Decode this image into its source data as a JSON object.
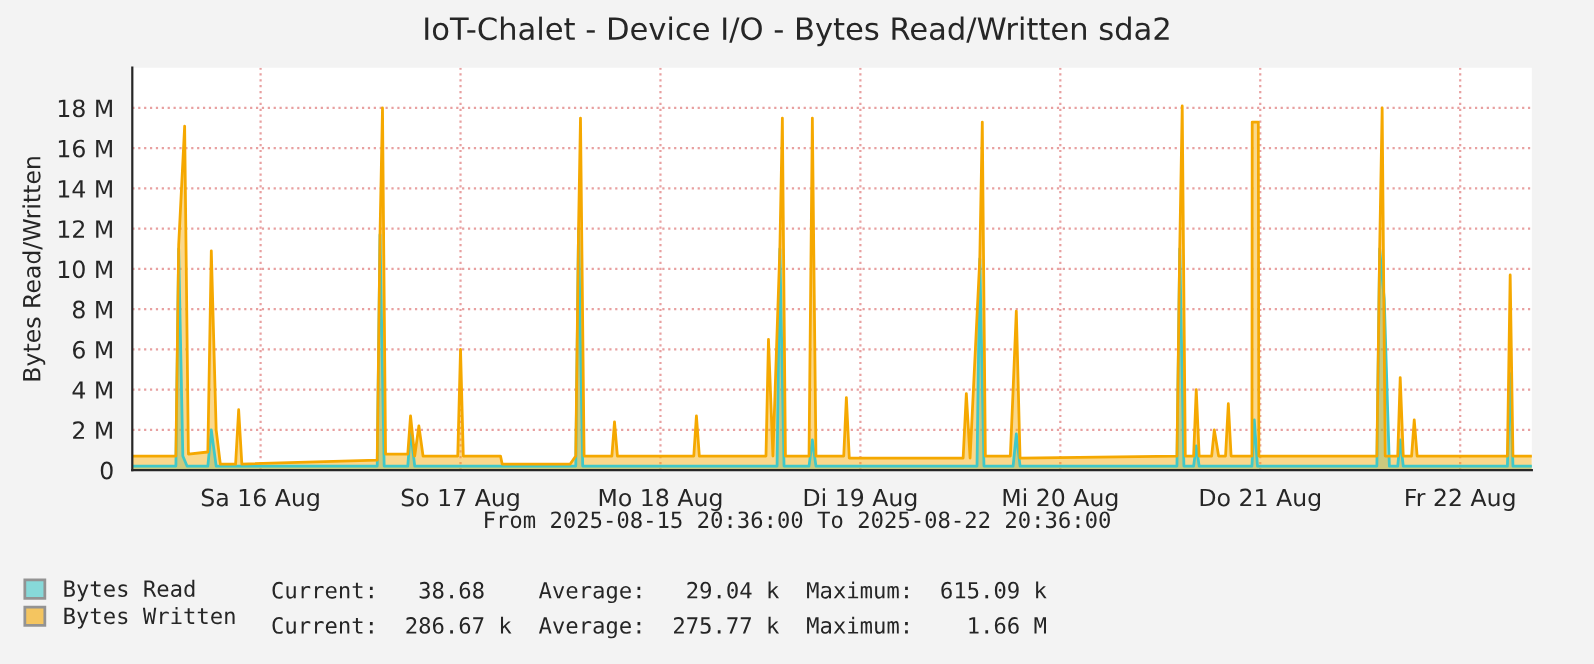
{
  "chart_data": {
    "type": "area",
    "title": "IoT-Chalet - Device I/O - Bytes Read/Written sda2",
    "ylabel": "Bytes Read/Written",
    "xlim": [
      "2025-08-15T20:36",
      "2025-08-22T20:36"
    ],
    "xticks": [
      {
        "value": "2025-08-16T12:00",
        "label": "Sa 16 Aug"
      },
      {
        "value": "2025-08-17T12:00",
        "label": "So 17 Aug"
      },
      {
        "value": "2025-08-18T12:00",
        "label": "Mo 18 Aug"
      },
      {
        "value": "2025-08-19T12:00",
        "label": "Di 19 Aug"
      },
      {
        "value": "2025-08-20T12:00",
        "label": "Mi 20 Aug"
      },
      {
        "value": "2025-08-21T12:00",
        "label": "Do 21 Aug"
      },
      {
        "value": "2025-08-22T12:00",
        "label": "Fr 22 Aug"
      }
    ],
    "ylim": [
      0,
      20000000
    ],
    "yticks": [
      0,
      {
        "value": 2000000,
        "label": "2 M"
      },
      {
        "value": 4000000,
        "label": "4 M"
      },
      {
        "value": 6000000,
        "label": "6 M"
      },
      {
        "value": 8000000,
        "label": "8 M"
      },
      {
        "value": 10000000,
        "label": "10 M"
      },
      {
        "value": 12000000,
        "label": "12 M"
      },
      {
        "value": 14000000,
        "label": "14 M"
      },
      {
        "value": 16000000,
        "label": "16 M"
      },
      {
        "value": 18000000,
        "label": "18 M"
      }
    ],
    "grid": true,
    "legend": "bottom left",
    "annotations": [
      "From 2025-08-15 20:36:00 To 2025-08-22 20:36:00",
      "Current:   38.68    Average:   29.04 k  Maximum:  615.09 k",
      "Current:  286.67 k  Average:  275.77 k  Maximum:    1.66 M"
    ],
    "series": [
      {
        "name": "Bytes Read",
        "color": "#40c8c8",
        "x": [
          "2025-08-15T20:36",
          "2025-08-16T01:50",
          "2025-08-16T02:10",
          "2025-08-16T02:40",
          "2025-08-16T03:10",
          "2025-08-16T05:40",
          "2025-08-16T06:05",
          "2025-08-16T06:40",
          "2025-08-17T02:00",
          "2025-08-17T02:20",
          "2025-08-17T02:50",
          "2025-08-17T05:40",
          "2025-08-17T06:00",
          "2025-08-17T06:30",
          "2025-08-18T01:50",
          "2025-08-18T02:10",
          "2025-08-18T02:40",
          "2025-08-19T02:00",
          "2025-08-19T02:20",
          "2025-08-19T02:50",
          "2025-08-19T05:50",
          "2025-08-19T06:14",
          "2025-08-19T06:40",
          "2025-08-20T02:00",
          "2025-08-20T02:20",
          "2025-08-20T02:50",
          "2025-08-20T06:20",
          "2025-08-20T06:43",
          "2025-08-20T07:10",
          "2025-08-21T02:00",
          "2025-08-21T02:20",
          "2025-08-21T02:50",
          "2025-08-21T04:00",
          "2025-08-21T04:19",
          "2025-08-21T04:40",
          "2025-08-21T11:00",
          "2025-08-21T11:17",
          "2025-08-21T11:40",
          "2025-08-22T02:00",
          "2025-08-22T02:20",
          "2025-08-22T02:53",
          "2025-08-22T03:30",
          "2025-08-22T04:30",
          "2025-08-22T04:48",
          "2025-08-22T05:10",
          "2025-08-22T17:40",
          "2025-08-22T18:00",
          "2025-08-22T18:20",
          "2025-08-22T20:36"
        ],
        "values": [
          200000,
          200000,
          11000000,
          700000,
          200000,
          200000,
          2000000,
          200000,
          200000,
          11700000,
          200000,
          200000,
          2000000,
          200000,
          200000,
          12000000,
          200000,
          200000,
          11000000,
          200000,
          200000,
          1500000,
          200000,
          200000,
          10500000,
          200000,
          200000,
          1800000,
          200000,
          200000,
          11000000,
          200000,
          200000,
          1200000,
          200000,
          200000,
          2500000,
          200000,
          200000,
          11000000,
          8500000,
          200000,
          200000,
          1500000,
          200000,
          200000,
          4800000,
          200000,
          200000
        ]
      },
      {
        "name": "Bytes Written",
        "color": "#f5a800",
        "x": [
          "2025-08-15T20:36",
          "2025-08-16T01:50",
          "2025-08-16T02:10",
          "2025-08-16T02:53",
          "2025-08-16T03:20",
          "2025-08-16T05:40",
          "2025-08-16T06:05",
          "2025-08-16T06:40",
          "2025-08-16T07:10",
          "2025-08-16T09:00",
          "2025-08-16T09:22",
          "2025-08-16T09:45",
          "2025-08-17T02:00",
          "2025-08-17T02:20",
          "2025-08-17T02:38",
          "2025-08-17T03:00",
          "2025-08-17T05:40",
          "2025-08-17T06:00",
          "2025-08-17T06:30",
          "2025-08-17T07:00",
          "2025-08-17T07:30",
          "2025-08-17T11:40",
          "2025-08-17T12:00",
          "2025-08-17T12:20",
          "2025-08-17T16:48",
          "2025-08-17T17:00",
          "2025-08-18T01:10",
          "2025-08-18T01:50",
          "2025-08-18T02:10",
          "2025-08-18T02:24",
          "2025-08-18T02:50",
          "2025-08-18T06:10",
          "2025-08-18T06:29",
          "2025-08-18T06:50",
          "2025-08-18T16:00",
          "2025-08-18T16:19",
          "2025-08-18T16:40",
          "2025-08-19T00:40",
          "2025-08-19T00:58",
          "2025-08-19T01:30",
          "2025-08-19T02:20",
          "2025-08-19T02:38",
          "2025-08-19T03:00",
          "2025-08-19T05:50",
          "2025-08-19T06:14",
          "2025-08-19T06:40",
          "2025-08-19T10:00",
          "2025-08-19T10:19",
          "2025-08-19T10:40",
          "2025-08-20T00:20",
          "2025-08-20T00:43",
          "2025-08-20T01:10",
          "2025-08-20T02:20",
          "2025-08-20T02:38",
          "2025-08-20T03:00",
          "2025-08-20T06:00",
          "2025-08-20T06:20",
          "2025-08-20T06:43",
          "2025-08-20T07:10",
          "2025-08-21T02:00",
          "2025-08-21T02:20",
          "2025-08-21T02:38",
          "2025-08-21T03:00",
          "2025-08-21T04:00",
          "2025-08-21T04:19",
          "2025-08-21T04:40",
          "2025-08-21T06:10",
          "2025-08-21T06:29",
          "2025-08-21T07:00",
          "2025-08-21T07:50",
          "2025-08-21T08:10",
          "2025-08-21T08:30",
          "2025-08-21T11:00",
          "2025-08-21T11:02",
          "2025-08-21T11:46",
          "2025-08-21T11:50",
          "2025-08-22T02:00",
          "2025-08-22T02:20",
          "2025-08-22T02:38",
          "2025-08-22T03:00",
          "2025-08-22T04:30",
          "2025-08-22T04:48",
          "2025-08-22T05:10",
          "2025-08-22T06:10",
          "2025-08-22T06:29",
          "2025-08-22T06:50",
          "2025-08-22T17:40",
          "2025-08-22T18:00",
          "2025-08-22T18:20",
          "2025-08-22T20:36"
        ],
        "values": [
          700000,
          700000,
          11200000,
          17100000,
          800000,
          900000,
          10900000,
          2000000,
          300000,
          300000,
          3000000,
          300000,
          500000,
          11700000,
          18000000,
          800000,
          800000,
          2700000,
          700000,
          2200000,
          700000,
          700000,
          6000000,
          700000,
          700000,
          300000,
          300000,
          700000,
          12000000,
          17500000,
          700000,
          700000,
          2400000,
          700000,
          700000,
          2700000,
          700000,
          700000,
          6500000,
          700000,
          11000000,
          17500000,
          700000,
          700000,
          17500000,
          700000,
          700000,
          3600000,
          600000,
          600000,
          3800000,
          600000,
          10500000,
          17300000,
          700000,
          700000,
          4000000,
          7900000,
          600000,
          700000,
          11000000,
          18100000,
          700000,
          700000,
          4000000,
          700000,
          700000,
          2000000,
          700000,
          700000,
          3300000,
          700000,
          700000,
          17300000,
          17300000,
          700000,
          700000,
          11000000,
          18000000,
          700000,
          700000,
          4600000,
          700000,
          700000,
          2500000,
          700000,
          700000,
          9700000,
          700000,
          700000
        ]
      }
    ]
  }
}
